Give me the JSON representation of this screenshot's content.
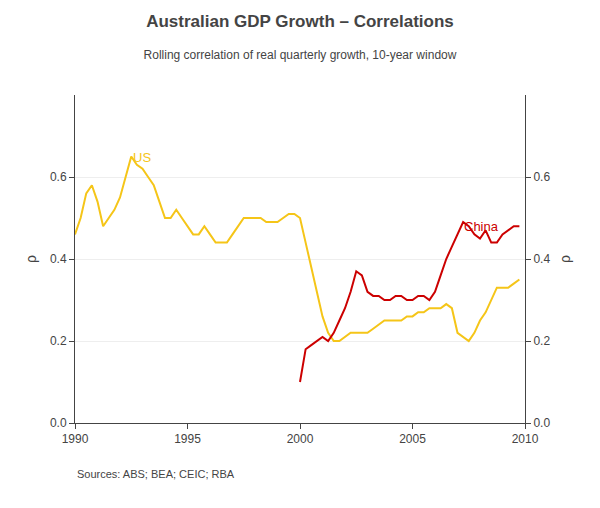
{
  "chart_data": {
    "type": "line",
    "title": "Australian GDP Growth – Correlations",
    "subtitle": "Rolling correlation of real quarterly growth, 10-year window",
    "ylabel": "ρ",
    "y2label": "ρ",
    "source": "Sources: ABS; BEA; CEIC; RBA",
    "xlim": [
      1990,
      2010
    ],
    "xticks": [
      1990,
      1995,
      2000,
      2005,
      2010
    ],
    "ylim": [
      0.0,
      0.8
    ],
    "yticks": [
      {
        "value": 0.0,
        "label": "0.0"
      },
      0.2,
      0.4,
      0.6
    ],
    "y2lim": [
      0.0,
      0.8
    ],
    "y2ticks": [
      {
        "value": 0.0,
        "label": "0.0"
      },
      0.2,
      0.4,
      0.6
    ],
    "grid": "y",
    "legend": false,
    "series": [
      {
        "name": "US",
        "color": "#F5C518",
        "x": [
          1990.0,
          1990.25,
          1990.5,
          1990.75,
          1991.0,
          1991.25,
          1991.5,
          1991.75,
          1992.0,
          1992.25,
          1992.5,
          1992.75,
          1993.0,
          1993.25,
          1993.5,
          1993.75,
          1994.0,
          1994.25,
          1994.5,
          1994.75,
          1995.0,
          1995.25,
          1995.5,
          1995.75,
          1996.0,
          1996.25,
          1996.5,
          1996.75,
          1997.0,
          1997.25,
          1997.5,
          1997.75,
          1998.0,
          1998.25,
          1998.5,
          1998.75,
          1999.0,
          1999.25,
          1999.5,
          1999.75,
          2000.0,
          2000.25,
          2000.5,
          2000.75,
          2001.0,
          2001.25,
          2001.5,
          2001.75,
          2002.0,
          2002.25,
          2002.5,
          2002.75,
          2003.0,
          2003.25,
          2003.5,
          2003.75,
          2004.0,
          2004.25,
          2004.5,
          2004.75,
          2005.0,
          2005.25,
          2005.5,
          2005.75,
          2006.0,
          2006.25,
          2006.5,
          2006.75,
          2007.0,
          2007.25,
          2007.5,
          2007.75,
          2008.0,
          2008.25,
          2008.5,
          2008.75,
          2009.0,
          2009.25,
          2009.5,
          2009.75
        ],
        "values": [
          0.46,
          0.5,
          0.56,
          0.58,
          0.54,
          0.48,
          0.5,
          0.52,
          0.55,
          0.6,
          0.65,
          0.63,
          0.62,
          0.6,
          0.58,
          0.54,
          0.5,
          0.5,
          0.52,
          0.5,
          0.48,
          0.46,
          0.46,
          0.48,
          0.46,
          0.44,
          0.44,
          0.44,
          0.46,
          0.48,
          0.5,
          0.5,
          0.5,
          0.5,
          0.49,
          0.49,
          0.49,
          0.5,
          0.51,
          0.51,
          0.5,
          0.44,
          0.38,
          0.32,
          0.26,
          0.22,
          0.2,
          0.2,
          0.21,
          0.22,
          0.22,
          0.22,
          0.22,
          0.23,
          0.24,
          0.25,
          0.25,
          0.25,
          0.25,
          0.26,
          0.26,
          0.27,
          0.27,
          0.28,
          0.28,
          0.28,
          0.29,
          0.28,
          0.22,
          0.21,
          0.2,
          0.22,
          0.25,
          0.27,
          0.3,
          0.33,
          0.33,
          0.33,
          0.34,
          0.35
        ]
      },
      {
        "name": "China",
        "color": "#CC0000",
        "x": [
          2000.0,
          2000.25,
          2000.5,
          2000.75,
          2001.0,
          2001.25,
          2001.5,
          2001.75,
          2002.0,
          2002.25,
          2002.5,
          2002.75,
          2003.0,
          2003.25,
          2003.5,
          2003.75,
          2004.0,
          2004.25,
          2004.5,
          2004.75,
          2005.0,
          2005.25,
          2005.5,
          2005.75,
          2006.0,
          2006.25,
          2006.5,
          2006.75,
          2007.0,
          2007.25,
          2007.5,
          2007.75,
          2008.0,
          2008.25,
          2008.5,
          2008.75,
          2009.0,
          2009.25,
          2009.5,
          2009.75
        ],
        "values": [
          0.1,
          0.18,
          0.19,
          0.2,
          0.21,
          0.2,
          0.22,
          0.25,
          0.28,
          0.32,
          0.37,
          0.36,
          0.32,
          0.31,
          0.31,
          0.3,
          0.3,
          0.31,
          0.31,
          0.3,
          0.3,
          0.31,
          0.31,
          0.3,
          0.32,
          0.36,
          0.4,
          0.43,
          0.46,
          0.49,
          0.48,
          0.46,
          0.45,
          0.47,
          0.44,
          0.44,
          0.46,
          0.47,
          0.48,
          0.48
        ]
      }
    ],
    "annotations": [
      {
        "text": "US",
        "x": 1992.5,
        "y": 0.625,
        "color": "#F5C518"
      },
      {
        "text": "China",
        "x": 2007.2,
        "y": 0.455,
        "color": "#CC0000"
      }
    ]
  }
}
